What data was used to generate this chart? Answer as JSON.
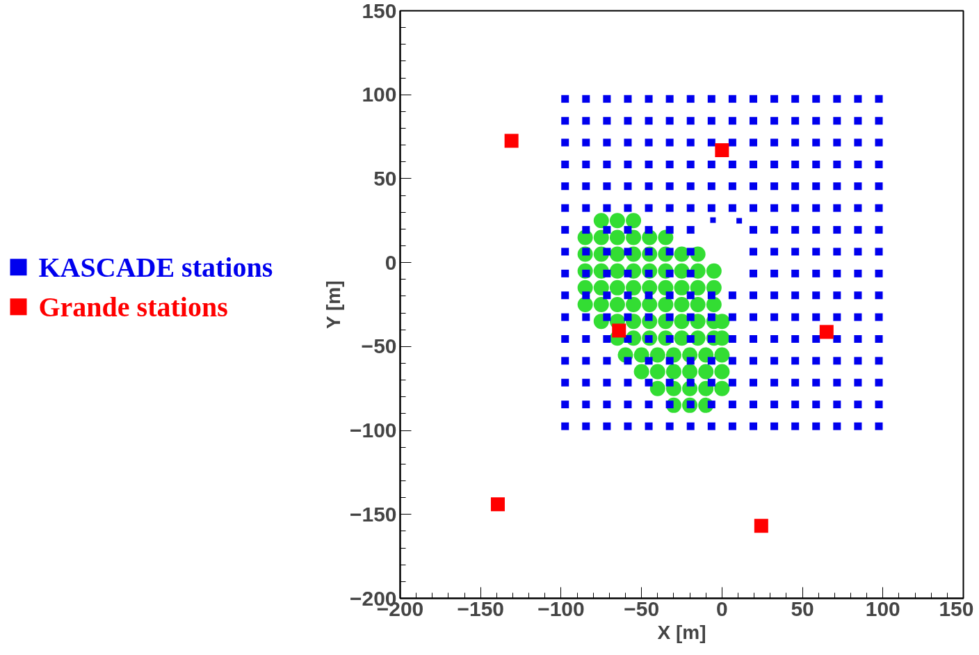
{
  "chart_data": {
    "type": "scatter",
    "xlabel": "X [m]",
    "ylabel": "Y [m]",
    "xlim": [
      -200,
      150
    ],
    "ylim": [
      -200,
      150
    ],
    "xticks": [
      -200,
      -150,
      -100,
      -50,
      0,
      50,
      100,
      150
    ],
    "yticks": [
      -200,
      -150,
      -100,
      -50,
      0,
      50,
      100,
      150
    ],
    "grid": false,
    "legend": "left",
    "marker": "square",
    "series": [
      {
        "color": "#33dd33",
        "marker": "circle",
        "x": [
          -75,
          -65,
          -55,
          -85,
          -75,
          -65,
          -55,
          -45,
          -35,
          -85,
          -75,
          -65,
          -55,
          -45,
          -35,
          -25,
          -15,
          -85,
          -75,
          -65,
          -55,
          -45,
          -35,
          -25,
          -15,
          -5,
          -85,
          -75,
          -65,
          -55,
          -45,
          -35,
          -25,
          -15,
          -5,
          -85,
          -75,
          -65,
          -55,
          -45,
          -35,
          -25,
          -15,
          -5,
          -75,
          -65,
          -55,
          -45,
          -35,
          -25,
          -15,
          -5,
          0,
          -65,
          -55,
          -45,
          -35,
          -25,
          -15,
          -5,
          0,
          -60,
          -50,
          -40,
          -30,
          -20,
          -10,
          0,
          -50,
          -40,
          -30,
          -20,
          -10,
          0,
          -40,
          -30,
          -20,
          -10,
          0,
          -30,
          -20,
          -10
        ],
        "values": [
          25,
          25,
          25,
          15,
          15,
          15,
          15,
          15,
          15,
          5,
          5,
          5,
          5,
          5,
          5,
          5,
          5,
          -5,
          -5,
          -5,
          -5,
          -5,
          -5,
          -5,
          -5,
          -5,
          -15,
          -15,
          -15,
          -15,
          -15,
          -15,
          -15,
          -15,
          -15,
          -25,
          -25,
          -25,
          -25,
          -25,
          -25,
          -25,
          -25,
          -25,
          -35,
          -35,
          -35,
          -35,
          -35,
          -35,
          -35,
          -35,
          -35,
          -45,
          -45,
          -45,
          -45,
          -45,
          -45,
          -45,
          -45,
          -55,
          -55,
          -55,
          -55,
          -55,
          -55,
          -55,
          -65,
          -65,
          -65,
          -65,
          -65,
          -65,
          -75,
          -75,
          -75,
          -75,
          -75,
          -85,
          -85,
          -85
        ]
      },
      {
        "name": "KASCADE stations",
        "color": "#0000ee",
        "x": [
          -97.5,
          -84.5,
          -71.5,
          -58.5,
          -45.5,
          -32.5,
          -19.5,
          -6.5,
          6.5,
          19.5,
          32.5,
          45.5,
          58.5,
          71.5,
          84.5,
          97.5,
          -97.5,
          -84.5,
          -71.5,
          -58.5,
          -45.5,
          -32.5,
          -19.5,
          -6.5,
          6.5,
          19.5,
          32.5,
          45.5,
          58.5,
          71.5,
          84.5,
          97.5,
          -97.5,
          -84.5,
          -71.5,
          -58.5,
          -45.5,
          -32.5,
          -19.5,
          -6.5,
          6.5,
          19.5,
          32.5,
          45.5,
          58.5,
          71.5,
          84.5,
          97.5,
          -97.5,
          -84.5,
          -71.5,
          -58.5,
          -45.5,
          -32.5,
          -19.5,
          -6.5,
          6.5,
          19.5,
          32.5,
          45.5,
          58.5,
          71.5,
          84.5,
          97.5,
          -97.5,
          -84.5,
          -71.5,
          -58.5,
          -45.5,
          -32.5,
          -19.5,
          -6.5,
          6.5,
          19.5,
          32.5,
          45.5,
          58.5,
          71.5,
          84.5,
          97.5,
          -97.5,
          -84.5,
          -71.5,
          -58.5,
          -45.5,
          -32.5,
          -19.5,
          -6.5,
          6.5,
          19.5,
          32.5,
          45.5,
          58.5,
          71.5,
          84.5,
          97.5,
          -97.5,
          -84.5,
          -71.5,
          -58.5,
          -45.5,
          -32.5,
          -19.5,
          19.5,
          32.5,
          45.5,
          58.5,
          71.5,
          84.5,
          97.5,
          -97.5,
          -84.5,
          -71.5,
          -58.5,
          -45.5,
          -32.5,
          -19.5,
          19.5,
          32.5,
          45.5,
          58.5,
          71.5,
          84.5,
          97.5,
          -97.5,
          -84.5,
          -71.5,
          -58.5,
          -45.5,
          -32.5,
          -19.5,
          19.5,
          32.5,
          45.5,
          58.5,
          71.5,
          84.5,
          97.5,
          -97.5,
          -84.5,
          -71.5,
          -58.5,
          -45.5,
          -32.5,
          -19.5,
          -6.5,
          6.5,
          19.5,
          32.5,
          45.5,
          58.5,
          71.5,
          84.5,
          97.5,
          -97.5,
          -84.5,
          -71.5,
          -58.5,
          -45.5,
          -32.5,
          -19.5,
          -6.5,
          6.5,
          19.5,
          32.5,
          45.5,
          58.5,
          71.5,
          84.5,
          97.5,
          -97.5,
          -84.5,
          -71.5,
          -58.5,
          -45.5,
          -32.5,
          -19.5,
          -6.5,
          6.5,
          19.5,
          32.5,
          45.5,
          58.5,
          71.5,
          84.5,
          97.5,
          -97.5,
          -84.5,
          -71.5,
          -58.5,
          -45.5,
          -32.5,
          -19.5,
          -6.5,
          6.5,
          19.5,
          32.5,
          45.5,
          58.5,
          71.5,
          84.5,
          97.5,
          -97.5,
          -84.5,
          -71.5,
          -58.5,
          -45.5,
          -32.5,
          -19.5,
          -6.5,
          6.5,
          19.5,
          32.5,
          45.5,
          58.5,
          71.5,
          84.5,
          97.5,
          -97.5,
          -84.5,
          -71.5,
          -58.5,
          -45.5,
          -32.5,
          -19.5,
          -6.5,
          6.5,
          19.5,
          32.5,
          45.5,
          58.5,
          71.5,
          84.5,
          97.5,
          -97.5,
          -84.5,
          -71.5,
          -58.5,
          -45.5,
          -32.5,
          -19.5,
          -6.5,
          6.5,
          19.5,
          32.5,
          45.5,
          58.5,
          71.5,
          84.5,
          97.5
        ],
        "values": [
          97.5,
          97.5,
          97.5,
          97.5,
          97.5,
          97.5,
          97.5,
          97.5,
          97.5,
          97.5,
          97.5,
          97.5,
          97.5,
          97.5,
          97.5,
          97.5,
          84.5,
          84.5,
          84.5,
          84.5,
          84.5,
          84.5,
          84.5,
          84.5,
          84.5,
          84.5,
          84.5,
          84.5,
          84.5,
          84.5,
          84.5,
          84.5,
          71.5,
          71.5,
          71.5,
          71.5,
          71.5,
          71.5,
          71.5,
          71.5,
          71.5,
          71.5,
          71.5,
          71.5,
          71.5,
          71.5,
          71.5,
          71.5,
          58.5,
          58.5,
          58.5,
          58.5,
          58.5,
          58.5,
          58.5,
          58.5,
          58.5,
          58.5,
          58.5,
          58.5,
          58.5,
          58.5,
          58.5,
          58.5,
          45.5,
          45.5,
          45.5,
          45.5,
          45.5,
          45.5,
          45.5,
          45.5,
          45.5,
          45.5,
          45.5,
          45.5,
          45.5,
          45.5,
          45.5,
          45.5,
          32.5,
          32.5,
          32.5,
          32.5,
          32.5,
          32.5,
          32.5,
          32.5,
          32.5,
          32.5,
          32.5,
          32.5,
          32.5,
          32.5,
          32.5,
          32.5,
          19.5,
          19.5,
          19.5,
          19.5,
          19.5,
          19.5,
          19.5,
          19.5,
          19.5,
          19.5,
          19.5,
          19.5,
          19.5,
          19.5,
          6.5,
          6.5,
          6.5,
          6.5,
          6.5,
          6.5,
          6.5,
          6.5,
          6.5,
          6.5,
          6.5,
          6.5,
          6.5,
          6.5,
          -6.5,
          -6.5,
          -6.5,
          -6.5,
          -6.5,
          -6.5,
          -6.5,
          -6.5,
          -6.5,
          -6.5,
          -6.5,
          -6.5,
          -6.5,
          -6.5,
          -19.5,
          -19.5,
          -19.5,
          -19.5,
          -19.5,
          -19.5,
          -19.5,
          -19.5,
          -19.5,
          -19.5,
          -19.5,
          -19.5,
          -19.5,
          -19.5,
          -19.5,
          -19.5,
          -32.5,
          -32.5,
          -32.5,
          -32.5,
          -32.5,
          -32.5,
          -32.5,
          -32.5,
          -32.5,
          -32.5,
          -32.5,
          -32.5,
          -32.5,
          -32.5,
          -32.5,
          -32.5,
          -45.5,
          -45.5,
          -45.5,
          -45.5,
          -45.5,
          -45.5,
          -45.5,
          -45.5,
          -45.5,
          -45.5,
          -45.5,
          -45.5,
          -45.5,
          -45.5,
          -45.5,
          -45.5,
          -58.5,
          -58.5,
          -58.5,
          -58.5,
          -58.5,
          -58.5,
          -58.5,
          -58.5,
          -58.5,
          -58.5,
          -58.5,
          -58.5,
          -58.5,
          -58.5,
          -58.5,
          -58.5,
          -71.5,
          -71.5,
          -71.5,
          -71.5,
          -71.5,
          -71.5,
          -71.5,
          -71.5,
          -71.5,
          -71.5,
          -71.5,
          -71.5,
          -71.5,
          -71.5,
          -71.5,
          -71.5,
          -84.5,
          -84.5,
          -84.5,
          -84.5,
          -84.5,
          -84.5,
          -84.5,
          -84.5,
          -84.5,
          -84.5,
          -84.5,
          -84.5,
          -84.5,
          -84.5,
          -84.5,
          -84.5,
          -97.5,
          -97.5,
          -97.5,
          -97.5,
          -97.5,
          -97.5,
          -97.5,
          -97.5,
          -97.5,
          -97.5,
          -97.5,
          -97.5,
          -97.5,
          -97.5,
          -97.5,
          -97.5
        ]
      },
      {
        "color": "#0000ee",
        "x": [
          -5.6,
          10.7
        ],
        "values": [
          25.3,
          24.9
        ]
      },
      {
        "name": "Grande stations",
        "color": "#ff0000",
        "x": [
          -130.8,
          0,
          -64,
          65,
          -139.3,
          24.4
        ],
        "values": [
          72.5,
          67,
          -40.5,
          -41.3,
          -144,
          -156.8
        ]
      }
    ]
  }
}
